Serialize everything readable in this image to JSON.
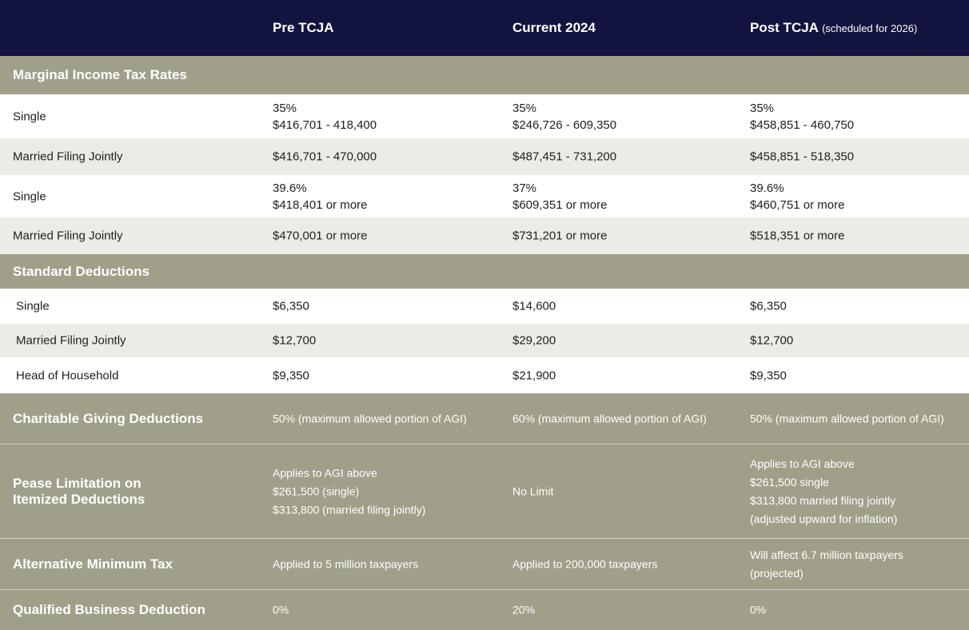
{
  "header": {
    "columns": [
      "",
      "Pre TCJA",
      "Current 2024",
      "Post TCJA"
    ],
    "post_note": "(scheduled for 2026)"
  },
  "sections": {
    "marginal": "Marginal Income Tax Rates",
    "standard": "Standard Deductions"
  },
  "marginal_rows": [
    {
      "label": "Single",
      "pre": [
        "35%",
        "$416,701 - 418,400"
      ],
      "cur": [
        "35%",
        "$246,726 - 609,350"
      ],
      "post": [
        "35%",
        "$458,851 - 460,750"
      ]
    },
    {
      "label": "Married Filing Jointly",
      "pre": [
        "$416,701 - 470,000"
      ],
      "cur": [
        "$487,451 - 731,200"
      ],
      "post": [
        "$458,851 - 518,350"
      ]
    },
    {
      "label": "Single",
      "pre": [
        "39.6%",
        "$418,401 or more"
      ],
      "cur": [
        "37%",
        "$609,351 or more"
      ],
      "post": [
        "39.6%",
        "$460,751 or more"
      ]
    },
    {
      "label": "Married Filing Jointly",
      "pre": [
        "$470,001 or more"
      ],
      "cur": [
        "$731,201 or more"
      ],
      "post": [
        "$518,351 or more"
      ]
    }
  ],
  "standard_rows": [
    {
      "label": "Single",
      "pre": "$6,350",
      "cur": "$14,600",
      "post": "$6,350"
    },
    {
      "label": "Married Filing Jointly",
      "pre": "$12,700",
      "cur": "$29,200",
      "post": "$12,700"
    },
    {
      "label": "Head of Household",
      "pre": "$9,350",
      "cur": "$21,900",
      "post": "$9,350"
    }
  ],
  "charitable": {
    "label": "Charitable Giving Deductions",
    "pre": "50% (maximum allowed portion of AGI)",
    "cur": "60% (maximum allowed portion of AGI)",
    "post": "50% (maximum allowed portion of AGI)"
  },
  "pease": {
    "label": [
      "Pease Limitation on",
      "Itemized Deductions"
    ],
    "pre": [
      "Applies to AGI above",
      "$261,500 (single)",
      "$313,800 (married filing jointly)"
    ],
    "cur": [
      "No Limit"
    ],
    "post": [
      "Applies to AGI above",
      "$261,500 single",
      "$313,800 married filing jointly",
      "(adjusted upward for inflation)"
    ]
  },
  "amt": {
    "label": "Alternative Minimum Tax",
    "pre": [
      "Applied to 5 million taxpayers"
    ],
    "cur": [
      "Applied to 200,000 taxpayers"
    ],
    "post": [
      "Will affect 6.7 million taxpayers",
      "(projected)"
    ]
  },
  "qbd": {
    "label": "Qualified Business Deduction",
    "pre": "0%",
    "cur": "20%",
    "post": "0%"
  }
}
